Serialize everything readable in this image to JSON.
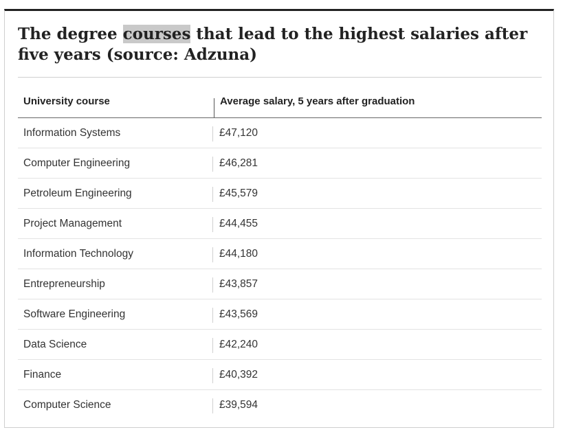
{
  "title": {
    "before": "The degree ",
    "highlight": "courses",
    "after": " that lead to the highest salaries after five years (source: Adzuna)"
  },
  "table": {
    "headers": [
      "University course",
      "Average salary, 5 years after graduation"
    ],
    "rows": [
      {
        "course": "Information Systems",
        "salary": "£47,120"
      },
      {
        "course": "Computer Engineering",
        "salary": "£46,281"
      },
      {
        "course": "Petroleum Engineering",
        "salary": "£45,579"
      },
      {
        "course": "Project Management",
        "salary": "£44,455"
      },
      {
        "course": "Information Technology",
        "salary": "£44,180"
      },
      {
        "course": "Entrepreneurship",
        "salary": "£43,857"
      },
      {
        "course": "Software Engineering",
        "salary": "£43,569"
      },
      {
        "course": "Data Science",
        "salary": "£42,240"
      },
      {
        "course": "Finance",
        "salary": "£40,392"
      },
      {
        "course": "Computer Science",
        "salary": "£39,594"
      }
    ]
  }
}
